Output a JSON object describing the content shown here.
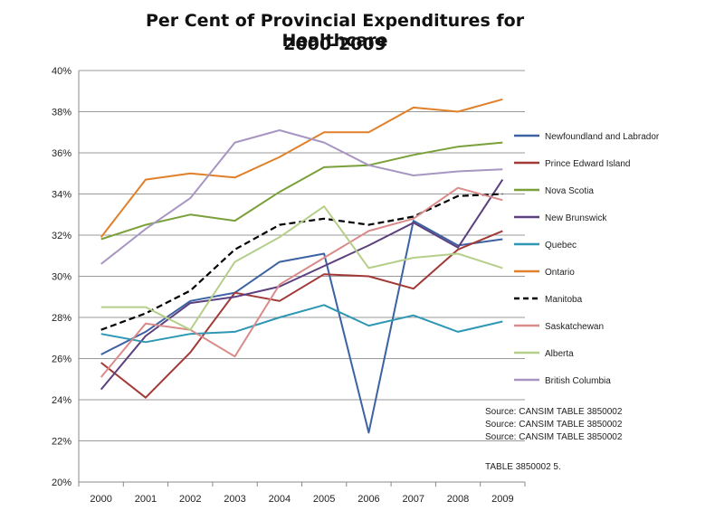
{
  "chart_data": {
    "type": "line",
    "title": "Per Cent of Provincial Expenditures  for Healthcare",
    "subtitle": "2000-2009",
    "x": [
      "2000",
      "2001",
      "2002",
      "2003",
      "2004",
      "2005",
      "2006",
      "2007",
      "2008",
      "2009"
    ],
    "ylim": [
      20,
      40
    ],
    "yticks": [
      "20%",
      "22%",
      "24%",
      "26%",
      "28%",
      "30%",
      "32%",
      "34%",
      "36%",
      "38%",
      "40%"
    ],
    "grid": true,
    "legend_position": "right",
    "series": [
      {
        "name": "Newfoundland and Labrador",
        "color": "#3c62a2",
        "dash": false,
        "values": [
          26.2,
          27.3,
          28.8,
          29.2,
          30.7,
          31.1,
          22.4,
          32.7,
          31.5,
          31.8
        ]
      },
      {
        "name": "Prince Edward Island",
        "color": "#a13937",
        "dash": false,
        "values": [
          25.8,
          24.1,
          26.3,
          29.2,
          28.8,
          30.1,
          30.0,
          29.4,
          31.3,
          32.2
        ]
      },
      {
        "name": "Nova Scotia",
        "color": "#7aa03a",
        "dash": false,
        "values": [
          31.8,
          32.5,
          33.0,
          32.7,
          34.1,
          35.3,
          35.4,
          35.9,
          36.3,
          36.5
        ]
      },
      {
        "name": "New Brunswick",
        "color": "#5b3f7f",
        "dash": false,
        "values": [
          24.5,
          27.1,
          28.7,
          29.0,
          29.5,
          30.5,
          31.5,
          32.6,
          31.4,
          34.7
        ]
      },
      {
        "name": "Quebec",
        "color": "#2e97b3",
        "dash": false,
        "values": [
          27.2,
          26.8,
          27.2,
          27.3,
          28.0,
          28.6,
          27.6,
          28.1,
          27.3,
          27.8
        ]
      },
      {
        "name": "Ontario",
        "color": "#e0802a",
        "dash": false,
        "values": [
          31.9,
          34.7,
          35.0,
          34.8,
          35.8,
          37.0,
          37.0,
          38.2,
          38.0,
          38.6
        ]
      },
      {
        "name": "Manitoba",
        "color": "#000000",
        "dash": true,
        "values": [
          27.4,
          28.2,
          29.3,
          31.3,
          32.5,
          32.8,
          32.5,
          32.9,
          33.9,
          34.0
        ]
      },
      {
        "name": "Saskatchewan",
        "color": "#d98b89",
        "dash": false,
        "values": [
          25.1,
          27.7,
          27.4,
          26.1,
          29.6,
          30.9,
          32.2,
          32.8,
          34.3,
          33.7
        ]
      },
      {
        "name": "Alberta",
        "color": "#b5cf8b",
        "dash": false,
        "values": [
          28.5,
          28.5,
          27.4,
          30.7,
          31.9,
          33.4,
          30.4,
          30.9,
          31.1,
          30.4
        ]
      },
      {
        "name": "British Columbia",
        "color": "#a796c2",
        "dash": false,
        "values": [
          30.6,
          32.3,
          33.8,
          36.5,
          37.1,
          36.5,
          35.4,
          34.9,
          35.1,
          35.2
        ]
      }
    ],
    "annotations": [
      "Source:  CANSIM TABLE 3850002",
      "Source:  CANSIM TABLE 3850002",
      "Source:  CANSIM TABLE 3850002",
      "TABLE 3850002 5."
    ]
  }
}
